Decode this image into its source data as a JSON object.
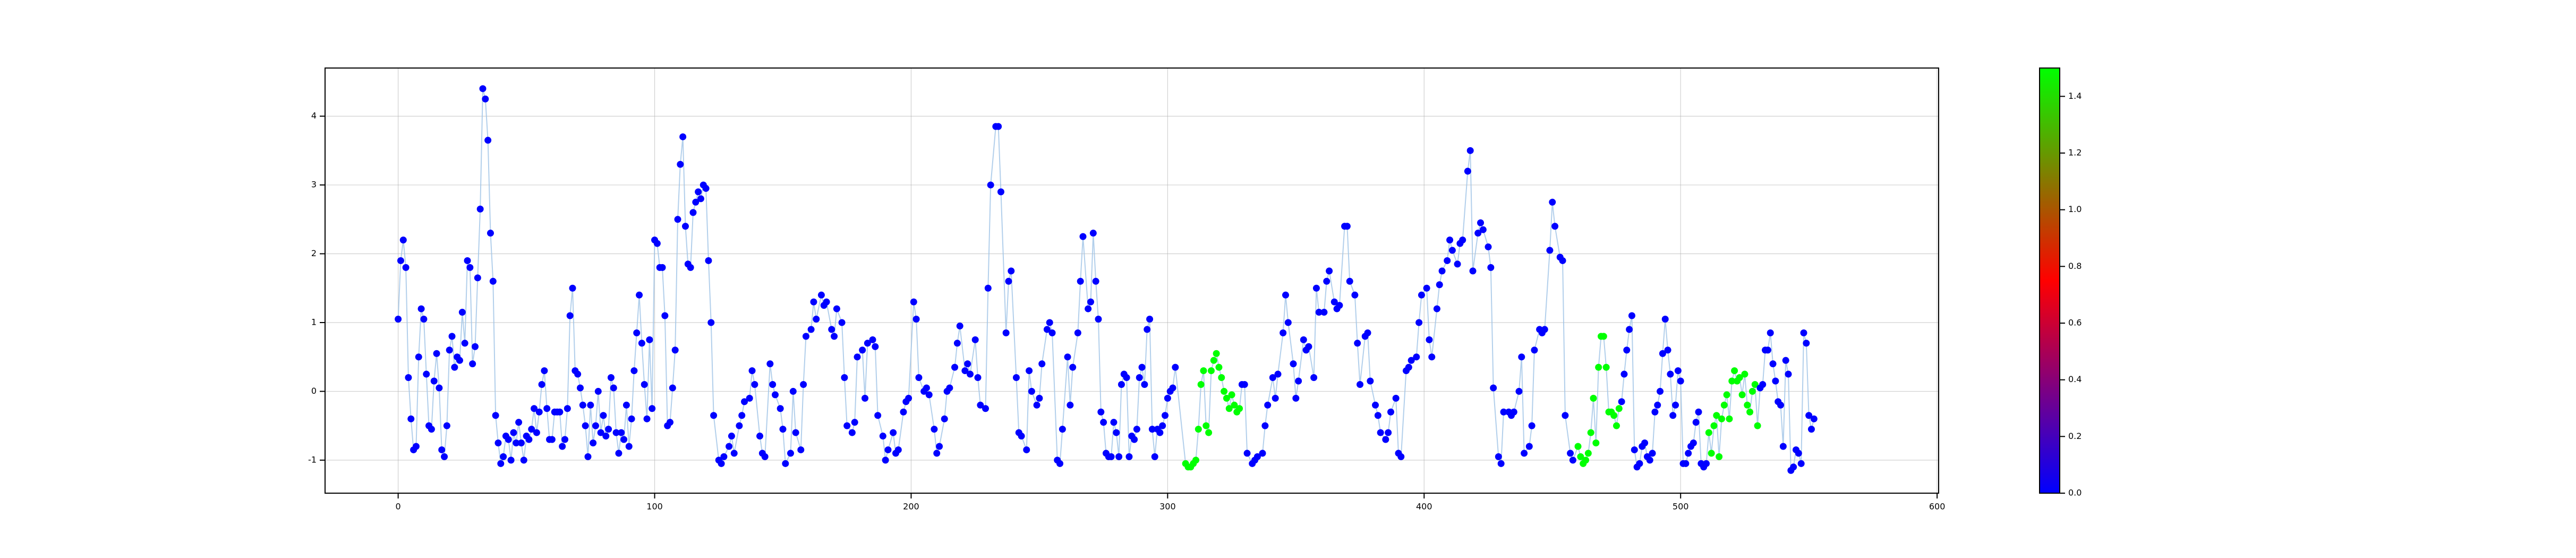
{
  "chart_data": {
    "type": "scatter",
    "xlim": [
      -28.5,
      600.6
    ],
    "ylim": [
      -1.48,
      4.7
    ],
    "xticks": [
      0,
      100,
      200,
      300,
      400,
      500,
      600
    ],
    "yticks": [
      -1,
      0,
      1,
      2,
      3,
      4
    ],
    "grid": true,
    "line_color": "#9fc3e6",
    "colorbar": {
      "colors": [
        "#0000ff",
        "#ff0000",
        "#00ff00"
      ],
      "lim": [
        0,
        1.5
      ],
      "ticks": [
        {
          "value": 0,
          "label": "0.0"
        },
        {
          "value": 0.2,
          "label": "0.2"
        },
        {
          "value": 0.4,
          "label": "0.4"
        },
        {
          "value": 0.6,
          "label": "0.6"
        },
        {
          "value": 0.8,
          "label": "0.8"
        },
        {
          "value": 1.0,
          "label": "1.0"
        },
        {
          "value": 1.2,
          "label": "1.2"
        },
        {
          "value": 1.4,
          "label": "1.4"
        }
      ]
    },
    "series": [
      {
        "color": "#0000ff",
        "x": [
          0,
          1,
          2,
          3,
          4,
          5,
          6,
          7,
          8,
          9,
          10,
          11,
          12,
          13,
          14,
          15,
          16,
          17,
          18,
          19,
          20,
          21,
          22,
          23,
          24,
          25,
          26,
          27,
          28,
          29,
          30,
          31,
          32,
          33,
          34,
          35,
          36,
          37,
          38,
          39,
          40,
          41,
          42,
          43,
          44,
          45,
          46,
          47,
          48,
          49,
          50,
          51,
          52,
          53,
          54,
          55,
          56,
          57,
          58,
          59,
          60,
          61,
          62,
          63,
          64,
          65,
          66,
          67,
          68,
          69,
          70,
          71,
          72,
          73,
          74,
          75,
          76,
          77,
          78,
          79,
          80,
          81,
          82,
          83,
          84,
          85,
          86,
          87,
          88,
          89,
          90,
          91,
          92,
          93,
          94,
          95,
          96,
          97,
          98,
          99,
          100,
          101,
          102,
          103,
          104,
          105,
          106,
          107,
          108,
          109,
          110,
          111,
          112,
          113,
          114,
          115,
          116,
          117,
          118,
          119,
          120,
          121,
          122,
          123,
          125,
          126,
          127,
          129,
          130,
          131,
          133,
          134,
          135,
          137,
          138,
          139,
          141,
          142,
          143,
          145,
          146,
          147,
          149,
          150,
          151,
          153,
          154,
          155,
          157,
          158,
          159,
          161,
          162,
          163,
          165,
          166,
          167,
          169,
          170,
          171,
          173,
          174,
          175,
          177,
          178,
          179,
          181,
          182,
          183,
          185,
          186,
          187,
          189,
          190,
          191,
          193,
          194,
          195,
          197,
          198,
          199,
          201,
          202,
          203,
          205,
          206,
          207,
          209,
          210,
          211,
          213,
          214,
          215,
          217,
          218,
          219,
          221,
          222,
          223,
          225,
          226,
          227,
          229,
          230,
          231,
          233,
          234,
          235,
          237,
          238,
          239,
          241,
          242,
          243,
          245,
          246,
          247,
          249,
          250,
          251,
          253,
          254,
          255,
          257,
          258,
          259,
          261,
          262,
          263,
          265,
          266,
          267,
          269,
          270,
          271,
          272,
          273,
          274,
          275,
          276,
          277,
          278,
          279,
          280,
          281,
          282,
          283,
          284,
          285,
          286,
          287,
          288,
          289,
          290,
          291,
          292,
          293,
          294,
          295,
          296,
          297,
          298,
          299,
          300,
          301,
          302,
          303
        ],
        "values": [
          1.05,
          1.9,
          2.2,
          1.8,
          0.2,
          -0.4,
          -0.85,
          -0.8,
          0.5,
          1.2,
          1.05,
          0.25,
          -0.5,
          -0.55,
          0.15,
          0.55,
          0.05,
          -0.85,
          -0.95,
          -0.5,
          0.6,
          0.8,
          0.35,
          0.5,
          0.45,
          1.15,
          0.7,
          1.9,
          1.8,
          0.4,
          0.65,
          1.65,
          2.65,
          4.4,
          4.25,
          3.65,
          2.3,
          1.6,
          -0.35,
          -0.75,
          -1.05,
          -0.95,
          -0.65,
          -0.7,
          -1.0,
          -0.6,
          -0.75,
          -0.45,
          -0.75,
          -1.0,
          -0.65,
          -0.7,
          -0.55,
          -0.25,
          -0.6,
          -0.3,
          0.1,
          0.3,
          -0.25,
          -0.7,
          -0.7,
          -0.3,
          -0.3,
          -0.3,
          -0.8,
          -0.7,
          -0.25,
          1.1,
          1.5,
          0.3,
          0.25,
          0.05,
          -0.2,
          -0.5,
          -0.95,
          -0.2,
          -0.75,
          -0.5,
          0.0,
          -0.6,
          -0.35,
          -0.65,
          -0.55,
          0.2,
          0.05,
          -0.6,
          -0.9,
          -0.6,
          -0.7,
          -0.2,
          -0.8,
          -0.4,
          0.3,
          0.85,
          1.4,
          0.7,
          0.1,
          -0.4,
          0.75,
          -0.25,
          2.2,
          2.15,
          1.8,
          1.8,
          1.1,
          -0.5,
          -0.45,
          0.05,
          0.6,
          2.5,
          3.3,
          3.7,
          2.4,
          1.85,
          1.8,
          2.6,
          2.75,
          2.9,
          2.8,
          3.0,
          2.95,
          1.9,
          1.0,
          -0.35,
          -1.0,
          -1.05,
          -0.95,
          -0.8,
          -0.65,
          -0.9,
          -0.5,
          -0.35,
          -0.15,
          -0.1,
          0.3,
          0.1,
          -0.65,
          -0.9,
          -0.95,
          0.4,
          0.1,
          -0.05,
          -0.25,
          -0.55,
          -1.05,
          -0.9,
          0.0,
          -0.6,
          -0.85,
          0.1,
          0.8,
          0.9,
          1.3,
          1.05,
          1.4,
          1.25,
          1.3,
          0.9,
          0.8,
          1.2,
          1.0,
          0.2,
          -0.5,
          -0.6,
          -0.45,
          0.5,
          0.6,
          -0.1,
          0.7,
          0.75,
          0.65,
          -0.35,
          -0.65,
          -1.0,
          -0.85,
          -0.6,
          -0.9,
          -0.85,
          -0.3,
          -0.15,
          -0.1,
          1.3,
          1.05,
          0.2,
          0.0,
          0.05,
          -0.05,
          -0.55,
          -0.9,
          -0.8,
          -0.4,
          0.0,
          0.05,
          0.35,
          0.7,
          0.95,
          0.3,
          0.4,
          0.25,
          0.75,
          0.2,
          -0.2,
          -0.25,
          1.5,
          3.0,
          3.85,
          3.85,
          2.9,
          0.85,
          1.6,
          1.75,
          0.2,
          -0.6,
          -0.65,
          -0.85,
          0.3,
          0.0,
          -0.2,
          -0.1,
          0.4,
          0.9,
          1.0,
          0.85,
          -1.0,
          -1.05,
          -0.55,
          0.5,
          -0.2,
          0.35,
          0.85,
          1.6,
          2.25,
          1.2,
          1.3,
          2.3,
          1.6,
          1.05,
          -0.3,
          -0.45,
          -0.9,
          -0.95,
          -0.95,
          -0.45,
          -0.6,
          -0.95,
          0.1,
          0.25,
          0.2,
          -0.95,
          -0.65,
          -0.7,
          -0.55,
          0.2,
          0.35,
          0.1,
          0.9,
          1.05,
          -0.55,
          -0.95,
          -0.55,
          -0.6,
          -0.5,
          -0.35,
          -0.1,
          0.0,
          0.05,
          0.35
        ]
      },
      {
        "color": "#00ff00",
        "x": [
          307,
          308,
          309,
          310,
          311,
          312,
          313,
          314,
          315,
          316,
          317,
          318,
          319,
          320,
          321,
          322,
          323,
          324,
          325,
          326,
          327,
          328
        ],
        "values": [
          -1.05,
          -1.1,
          -1.1,
          -1.05,
          -1.0,
          -0.55,
          0.1,
          0.3,
          -0.5,
          -0.6,
          0.3,
          0.45,
          0.55,
          0.35,
          0.2,
          0.0,
          -0.1,
          -0.25,
          -0.05,
          -0.2,
          -0.3,
          -0.25
        ]
      },
      {
        "color": "#0000ff",
        "x": [
          329,
          330,
          331,
          333,
          334,
          335,
          337,
          338,
          339,
          341,
          342,
          343,
          345,
          346,
          347,
          349,
          350,
          351,
          353,
          354,
          355,
          357,
          358,
          359,
          361,
          362,
          363,
          365,
          366,
          367,
          369,
          370,
          371,
          373,
          374,
          375,
          377,
          378,
          379,
          381,
          382,
          383,
          385,
          386,
          387,
          389,
          390,
          391,
          393,
          394,
          395,
          397,
          398,
          399,
          401,
          402,
          403,
          405,
          406,
          407,
          409,
          410,
          411,
          413,
          414,
          415,
          417,
          418,
          419,
          421,
          422,
          423,
          425,
          426,
          427,
          429,
          430,
          431,
          433,
          434,
          435,
          437,
          438,
          439,
          441,
          442,
          443,
          445,
          446,
          447,
          449,
          450,
          451,
          453,
          454,
          455,
          457,
          458
        ],
        "values": [
          0.1,
          0.1,
          -0.9,
          -1.05,
          -1.0,
          -0.95,
          -0.9,
          -0.5,
          -0.2,
          0.2,
          -0.1,
          0.25,
          0.85,
          1.4,
          1.0,
          0.4,
          -0.1,
          0.15,
          0.75,
          0.6,
          0.65,
          0.2,
          1.5,
          1.15,
          1.15,
          1.6,
          1.75,
          1.3,
          1.2,
          1.25,
          2.4,
          2.4,
          1.6,
          1.4,
          0.7,
          0.1,
          0.8,
          0.85,
          0.15,
          -0.2,
          -0.35,
          -0.6,
          -0.7,
          -0.6,
          -0.3,
          -0.1,
          -0.9,
          -0.95,
          0.3,
          0.35,
          0.45,
          0.5,
          1.0,
          1.4,
          1.5,
          0.75,
          0.5,
          1.2,
          1.55,
          1.75,
          1.9,
          2.2,
          2.05,
          1.85,
          2.15,
          2.2,
          3.2,
          3.5,
          1.75,
          2.3,
          2.45,
          2.35,
          2.1,
          1.8,
          0.05,
          -0.95,
          -1.05,
          -0.3,
          -0.3,
          -0.35,
          -0.3,
          0.0,
          0.5,
          -0.9,
          -0.8,
          -0.5,
          0.6,
          0.9,
          0.85,
          0.9,
          2.05,
          2.75,
          2.4,
          1.95,
          1.9,
          -0.35,
          -0.9,
          -1.0
        ]
      },
      {
        "color": "#00ff00",
        "x": [
          460,
          461,
          462,
          463,
          464,
          465,
          466,
          467,
          468,
          469,
          470,
          471,
          472,
          473,
          474,
          475,
          476
        ],
        "values": [
          -0.8,
          -0.95,
          -1.05,
          -1.0,
          -0.9,
          -0.6,
          -0.1,
          -0.75,
          0.35,
          0.8,
          0.8,
          0.35,
          -0.3,
          -0.3,
          -0.35,
          -0.5,
          -0.25
        ]
      },
      {
        "color": "#0000ff",
        "x": [
          477,
          478,
          479,
          480,
          481,
          482,
          483,
          484,
          485,
          486,
          487,
          488,
          489,
          490,
          491,
          492,
          493,
          494,
          495,
          496,
          497,
          498,
          499,
          500,
          501,
          502,
          503,
          504,
          505,
          506,
          507,
          508,
          509,
          510
        ],
        "values": [
          -0.15,
          0.25,
          0.6,
          0.9,
          1.1,
          -0.85,
          -1.1,
          -1.05,
          -0.8,
          -0.75,
          -0.95,
          -1.0,
          -0.9,
          -0.3,
          -0.2,
          0.0,
          0.55,
          1.05,
          0.6,
          0.25,
          -0.35,
          -0.2,
          0.3,
          0.15,
          -1.05,
          -1.05,
          -0.9,
          -0.8,
          -0.75,
          -0.45,
          -0.3,
          -1.05,
          -1.1,
          -1.05
        ]
      },
      {
        "color": "#00ff00",
        "x": [
          511,
          512,
          513,
          514,
          515,
          516,
          517,
          518,
          519,
          520,
          521,
          522,
          523,
          524,
          525,
          526,
          527,
          528,
          529,
          530
        ],
        "values": [
          -0.6,
          -0.9,
          -0.5,
          -0.35,
          -0.95,
          -0.4,
          -0.2,
          -0.05,
          -0.4,
          0.15,
          0.3,
          0.15,
          0.2,
          -0.05,
          0.25,
          -0.2,
          -0.3,
          0.0,
          0.1,
          -0.5
        ]
      },
      {
        "color": "#0000ff",
        "x": [
          531,
          532,
          533,
          534,
          535,
          536,
          537,
          538,
          539,
          540,
          541,
          542,
          543,
          544,
          545,
          546,
          547,
          548,
          549,
          550,
          551,
          552
        ],
        "values": [
          0.05,
          0.1,
          0.6,
          0.6,
          0.85,
          0.4,
          0.15,
          -0.15,
          -0.2,
          -0.8,
          0.45,
          0.25,
          -1.15,
          -1.1,
          -0.85,
          -0.9,
          -1.05,
          0.85,
          0.7,
          -0.35,
          -0.55,
          -0.4
        ]
      }
    ]
  }
}
